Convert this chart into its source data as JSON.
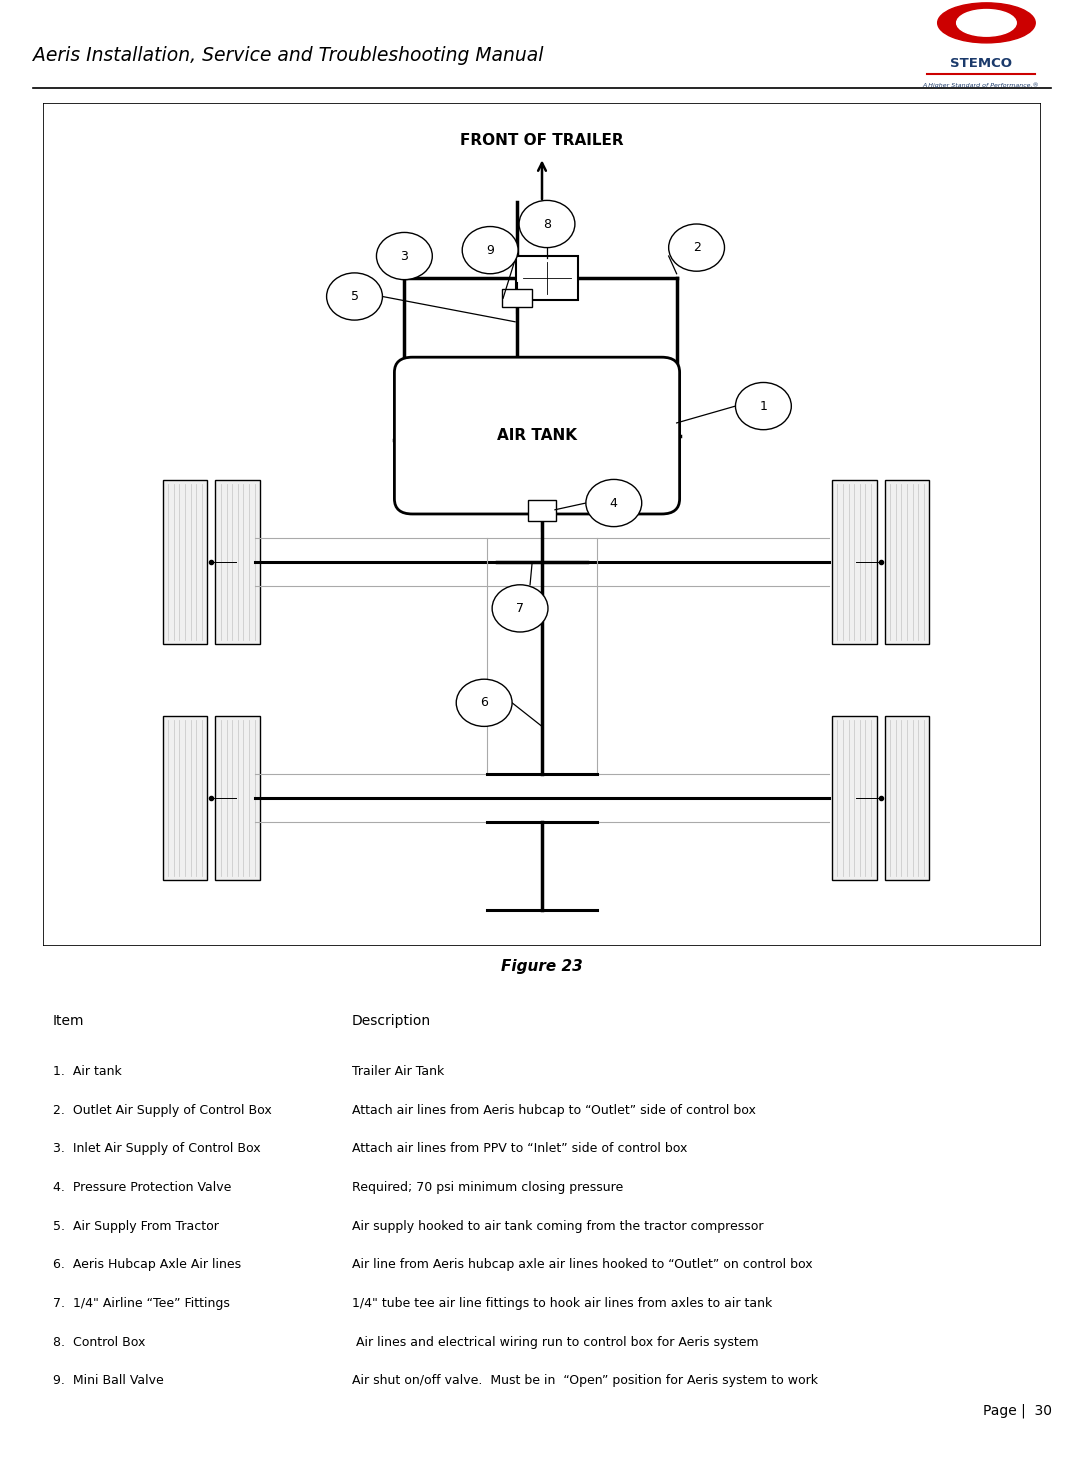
{
  "title": "Aeris Installation, Service and Troubleshooting Manual",
  "figure_label": "Figure 23",
  "front_of_trailer": "FRONT OF TRAILER",
  "air_tank_label": "AIR TANK",
  "page_label": "Page |  30",
  "items": [
    {
      "num": 1,
      "name": "Air tank",
      "desc": "Trailer Air Tank"
    },
    {
      "num": 2,
      "name": "Outlet Air Supply of Control Box",
      "desc": "Attach air lines from Aeris hubcap to “Outlet” side of control box"
    },
    {
      "num": 3,
      "name": "Inlet Air Supply of Control Box",
      "desc": "Attach air lines from PPV to “Inlet” side of control box"
    },
    {
      "num": 4,
      "name": "Pressure Protection Valve",
      "desc": "Required; 70 psi minimum closing pressure"
    },
    {
      "num": 5,
      "name": "Air Supply From Tractor",
      "desc": "Air supply hooked to air tank coming from the tractor compressor"
    },
    {
      "num": 6,
      "name": "Aeris Hubcap Axle Air lines",
      "desc": "Air line from Aeris hubcap axle air lines hooked to “Outlet” on control box"
    },
    {
      "num": 7,
      "name": "1/4\" Airline “Tee” Fittings",
      "desc": "1/4\" tube tee air line fittings to hook air lines from axles to air tank"
    },
    {
      "num": 8,
      "name": "Control Box",
      "desc": " Air lines and electrical wiring run to control box for Aeris system"
    },
    {
      "num": 9,
      "name": "Mini Ball Valve",
      "desc": "Air shut on/off valve.  Must be in  “Open” position for Aeris system to work"
    }
  ],
  "bg_color": "#ffffff",
  "stemco_blue": "#1b3a6b",
  "stemco_red": "#cc0000",
  "tire_fill": "#f0f0f0",
  "tire_stripe": "#cccccc",
  "axle_color": "#000000",
  "pipe_lw": 2.5,
  "label_circle_r": 0.28
}
